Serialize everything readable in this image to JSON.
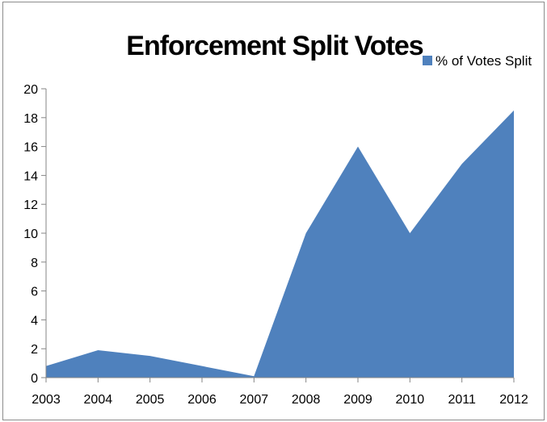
{
  "chart_data": {
    "type": "area",
    "title": "Enforcement Split Votes",
    "xlabel": "",
    "ylabel": "",
    "categories": [
      "2003",
      "2004",
      "2005",
      "2006",
      "2007",
      "2008",
      "2009",
      "2010",
      "2011",
      "2012"
    ],
    "series": [
      {
        "name": "% of Votes Split",
        "values": [
          0.8,
          1.9,
          1.5,
          0.8,
          0.1,
          10.0,
          16.0,
          10.0,
          14.8,
          18.5
        ]
      }
    ],
    "ylim": [
      0,
      20
    ],
    "yticks": [
      "0",
      "2",
      "4",
      "6",
      "8",
      "10",
      "12",
      "14",
      "16",
      "18",
      "20"
    ],
    "grid": false,
    "legend_position": "top-right",
    "colors": {
      "series": "#4f81bd",
      "axis": "#868686"
    }
  }
}
